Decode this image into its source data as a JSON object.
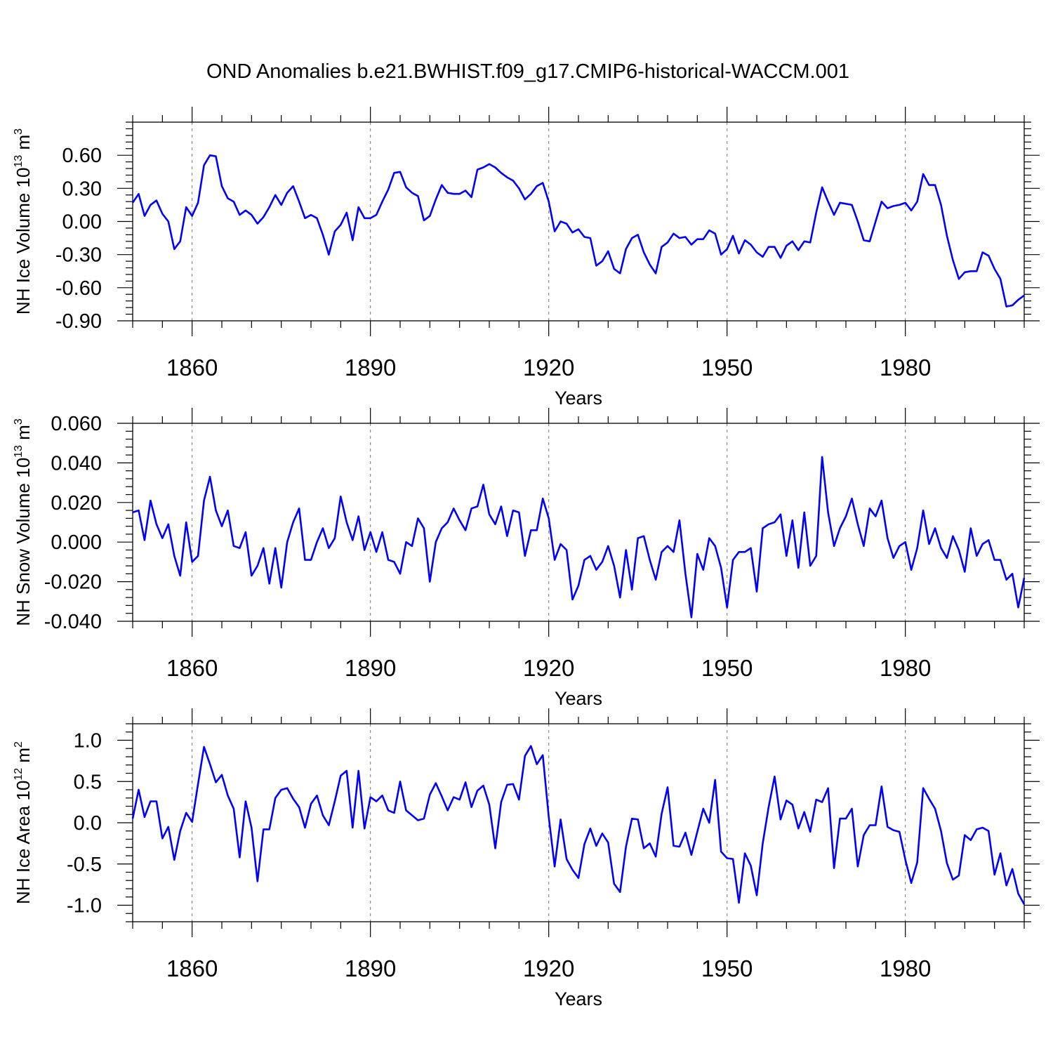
{
  "title": "OND Anomalies b.e21.BWHIST.f09_g17.CMIP6-historical-WACCM.001",
  "colors": {
    "line": "#0000ff",
    "axis": "#000000",
    "grid": "#777777",
    "background": "#ffffff"
  },
  "chart_data": [
    {
      "type": "line",
      "id": "ice-volume",
      "ylabel": "NH Ice Volume 10",
      "ylabel_exp": "13",
      "ylabel_unit": "m",
      "ylabel_unit_exp": "3",
      "xlabel": "Years",
      "xlim": [
        1850,
        2000
      ],
      "ylim": [
        -0.9,
        0.9
      ],
      "x_ticks": [
        1860,
        1890,
        1920,
        1950,
        1980
      ],
      "x_tick_labels": [
        "1860",
        "1890",
        "1920",
        "1950",
        "1980"
      ],
      "y_ticks": [
        0.6,
        0.3,
        0.0,
        -0.3,
        -0.6,
        -0.9
      ],
      "y_tick_labels": [
        "0.60",
        "0.30",
        "0.00",
        "-0.30",
        "-0.60",
        "-0.90"
      ],
      "grid": "vertical dashed at major x ticks",
      "x_start": 1850,
      "values": [
        0.17,
        0.25,
        0.05,
        0.15,
        0.19,
        0.07,
        0.0,
        -0.25,
        -0.18,
        0.13,
        0.05,
        0.17,
        0.51,
        0.6,
        0.59,
        0.32,
        0.21,
        0.18,
        0.06,
        0.1,
        0.06,
        -0.02,
        0.04,
        0.13,
        0.24,
        0.15,
        0.26,
        0.32,
        0.18,
        0.03,
        0.06,
        0.03,
        -0.12,
        -0.3,
        -0.09,
        -0.03,
        0.08,
        -0.17,
        0.13,
        0.03,
        0.03,
        0.06,
        0.18,
        0.29,
        0.44,
        0.45,
        0.31,
        0.26,
        0.23,
        0.01,
        0.05,
        0.2,
        0.33,
        0.26,
        0.25,
        0.25,
        0.28,
        0.22,
        0.47,
        0.49,
        0.52,
        0.49,
        0.44,
        0.4,
        0.37,
        0.3,
        0.2,
        0.25,
        0.32,
        0.35,
        0.18,
        -0.09,
        0.0,
        -0.02,
        -0.1,
        -0.07,
        -0.14,
        -0.15,
        -0.4,
        -0.36,
        -0.27,
        -0.43,
        -0.47,
        -0.25,
        -0.15,
        -0.12,
        -0.28,
        -0.39,
        -0.47,
        -0.23,
        -0.19,
        -0.11,
        -0.15,
        -0.14,
        -0.21,
        -0.16,
        -0.16,
        -0.08,
        -0.11,
        -0.3,
        -0.25,
        -0.13,
        -0.29,
        -0.17,
        -0.21,
        -0.28,
        -0.32,
        -0.23,
        -0.23,
        -0.33,
        -0.22,
        -0.18,
        -0.26,
        -0.18,
        -0.19,
        0.08,
        0.31,
        0.18,
        0.06,
        0.17,
        0.16,
        0.15,
        0.0,
        -0.17,
        -0.18,
        0.0,
        0.18,
        0.12,
        0.14,
        0.15,
        0.17,
        0.1,
        0.18,
        0.43,
        0.33,
        0.33,
        0.15,
        -0.13,
        -0.35,
        -0.52,
        -0.46,
        -0.45,
        -0.45,
        -0.28,
        -0.31,
        -0.43,
        -0.52,
        -0.77,
        -0.76,
        -0.71,
        -0.67
      ]
    },
    {
      "type": "line",
      "id": "snow-volume",
      "ylabel": "NH Snow Volume 10",
      "ylabel_exp": "13",
      "ylabel_unit": "m",
      "ylabel_unit_exp": "3",
      "xlabel": "Years",
      "xlim": [
        1850,
        2000
      ],
      "ylim": [
        -0.04,
        0.06
      ],
      "x_ticks": [
        1860,
        1890,
        1920,
        1950,
        1980
      ],
      "x_tick_labels": [
        "1860",
        "1890",
        "1920",
        "1950",
        "1980"
      ],
      "y_ticks": [
        0.06,
        0.04,
        0.02,
        0.0,
        -0.02,
        -0.04
      ],
      "y_tick_labels": [
        "0.060",
        "0.040",
        "0.020",
        "0.000",
        "-0.020",
        "-0.040"
      ],
      "grid": "vertical dashed at major x ticks",
      "x_start": 1850,
      "values": [
        0.015,
        0.016,
        0.001,
        0.021,
        0.009,
        0.002,
        0.009,
        -0.007,
        -0.017,
        0.01,
        -0.01,
        -0.007,
        0.021,
        0.033,
        0.016,
        0.008,
        0.016,
        -0.002,
        -0.003,
        0.005,
        -0.017,
        -0.012,
        -0.003,
        -0.021,
        -0.003,
        -0.023,
        0.0,
        0.01,
        0.017,
        -0.009,
        -0.009,
        0.0,
        0.007,
        -0.003,
        0.002,
        0.023,
        0.01,
        0.001,
        0.013,
        -0.004,
        0.005,
        -0.005,
        0.005,
        -0.009,
        -0.01,
        -0.016,
        0.0,
        -0.002,
        0.012,
        0.007,
        -0.02,
        0.0,
        0.007,
        0.01,
        0.017,
        0.011,
        0.006,
        0.017,
        0.018,
        0.029,
        0.014,
        0.009,
        0.018,
        0.003,
        0.016,
        0.015,
        -0.007,
        0.006,
        0.006,
        0.022,
        0.012,
        -0.009,
        -0.001,
        -0.004,
        -0.029,
        -0.022,
        -0.009,
        -0.007,
        -0.014,
        -0.01,
        -0.002,
        -0.012,
        -0.028,
        -0.004,
        -0.024,
        0.002,
        0.003,
        -0.009,
        -0.019,
        -0.005,
        -0.002,
        -0.005,
        0.011,
        -0.016,
        -0.038,
        -0.006,
        -0.014,
        0.002,
        -0.002,
        -0.013,
        -0.033,
        -0.009,
        -0.005,
        -0.005,
        -0.003,
        -0.025,
        0.007,
        0.009,
        0.01,
        0.014,
        -0.007,
        0.011,
        -0.013,
        0.015,
        -0.012,
        -0.007,
        0.043,
        0.015,
        -0.002,
        0.007,
        0.013,
        0.022,
        0.009,
        -0.002,
        0.017,
        0.013,
        0.021,
        0.002,
        -0.008,
        -0.002,
        0.0,
        -0.014,
        -0.003,
        0.016,
        -0.001,
        0.007,
        -0.003,
        -0.008,
        0.003,
        -0.004,
        -0.015,
        0.007,
        -0.007,
        -0.001,
        0.001,
        -0.009,
        -0.009,
        -0.019,
        -0.016,
        -0.033,
        -0.018
      ]
    },
    {
      "type": "line",
      "id": "ice-area",
      "ylabel": "NH Ice Area 10",
      "ylabel_exp": "12",
      "ylabel_unit": "m",
      "ylabel_unit_exp": "2",
      "xlabel": "Years",
      "xlim": [
        1850,
        2000
      ],
      "ylim": [
        -1.2,
        1.2
      ],
      "x_ticks": [
        1860,
        1890,
        1920,
        1950,
        1980
      ],
      "x_tick_labels": [
        "1860",
        "1890",
        "1920",
        "1950",
        "1980"
      ],
      "y_ticks": [
        1.0,
        0.5,
        0.0,
        -0.5,
        -1.0
      ],
      "y_tick_labels": [
        "1.0",
        "0.5",
        "0.0",
        "-0.5",
        "-1.0"
      ],
      "grid": "vertical dashed at major x ticks",
      "x_start": 1850,
      "values": [
        0.05,
        0.4,
        0.07,
        0.26,
        0.26,
        -0.19,
        -0.05,
        -0.45,
        -0.1,
        0.12,
        0.01,
        0.47,
        0.92,
        0.71,
        0.49,
        0.58,
        0.33,
        0.17,
        -0.42,
        0.26,
        -0.06,
        -0.71,
        -0.08,
        -0.08,
        0.3,
        0.4,
        0.42,
        0.29,
        0.19,
        -0.06,
        0.23,
        0.33,
        0.09,
        -0.03,
        0.26,
        0.57,
        0.63,
        -0.06,
        0.63,
        -0.07,
        0.31,
        0.26,
        0.33,
        0.15,
        0.12,
        0.5,
        0.15,
        0.09,
        0.03,
        0.05,
        0.34,
        0.48,
        0.32,
        0.15,
        0.31,
        0.28,
        0.49,
        0.19,
        0.39,
        0.45,
        0.22,
        -0.31,
        0.25,
        0.46,
        0.47,
        0.28,
        0.81,
        0.93,
        0.71,
        0.82,
        0.07,
        -0.53,
        0.04,
        -0.44,
        -0.57,
        -0.67,
        -0.26,
        -0.07,
        -0.28,
        -0.13,
        -0.24,
        -0.74,
        -0.84,
        -0.29,
        0.05,
        0.04,
        -0.31,
        -0.25,
        -0.41,
        0.11,
        0.43,
        -0.28,
        -0.29,
        -0.12,
        -0.39,
        -0.11,
        0.17,
        0.0,
        0.52,
        -0.35,
        -0.43,
        -0.44,
        -0.97,
        -0.37,
        -0.52,
        -0.88,
        -0.25,
        0.19,
        0.56,
        0.04,
        0.27,
        0.22,
        -0.07,
        0.13,
        -0.11,
        0.28,
        0.25,
        0.42,
        -0.55,
        0.05,
        0.05,
        0.17,
        -0.53,
        -0.15,
        -0.03,
        -0.03,
        0.44,
        -0.05,
        -0.09,
        -0.11,
        -0.45,
        -0.73,
        -0.48,
        0.42,
        0.29,
        0.17,
        -0.1,
        -0.49,
        -0.69,
        -0.64,
        -0.15,
        -0.21,
        -0.08,
        -0.06,
        -0.1,
        -0.63,
        -0.37,
        -0.76,
        -0.56,
        -0.86,
        -0.99
      ]
    }
  ]
}
